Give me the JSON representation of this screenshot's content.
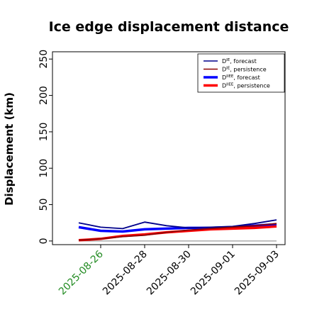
{
  "chart_data": {
    "type": "line",
    "title": "Ice edge displacement distance",
    "xlabel": "",
    "ylabel": "Displacement (km)",
    "x": [
      "2025-08-25",
      "2025-08-26",
      "2025-08-27",
      "2025-08-28",
      "2025-08-29",
      "2025-08-30",
      "2025-08-31",
      "2025-09-01",
      "2025-09-02",
      "2025-09-03"
    ],
    "xticks": [
      "2025-08-26",
      "2025-08-28",
      "2025-08-30",
      "2025-09-01",
      "2025-09-03"
    ],
    "xtick_highlight": "2025-08-26",
    "xlim": [
      "2025-08-24",
      "2025-09-03"
    ],
    "ylim": [
      -5,
      260
    ],
    "yticks": [
      0,
      50,
      100,
      150,
      200,
      250
    ],
    "grid": false,
    "legend_position": "top-right",
    "series": [
      {
        "name": "D^IE, forecast",
        "color": "#00008b",
        "width": "thin",
        "values": [
          25,
          19,
          17,
          26,
          21,
          18,
          19,
          20,
          24,
          29
        ]
      },
      {
        "name": "D^IE, persistence",
        "color": "#8b0000",
        "width": "thin",
        "values": [
          1,
          3,
          6,
          8,
          12,
          15,
          17,
          19,
          21,
          24
        ]
      },
      {
        "name": "D^IIEE, forecast",
        "color": "#0000ff",
        "width": "thick",
        "values": [
          19,
          14,
          13,
          16,
          17,
          18,
          18,
          19,
          21,
          23
        ]
      },
      {
        "name": "D^IIEE, persistence",
        "color": "#ff0000",
        "width": "thick",
        "values": [
          1,
          3,
          7,
          9,
          12,
          14,
          16,
          17,
          18,
          20
        ]
      }
    ],
    "reference_line": {
      "value": 0,
      "color": "#808080"
    },
    "legend_labels": [
      {
        "base": "D",
        "sup": "IE",
        "rest": ", forecast"
      },
      {
        "base": "D",
        "sup": "IE",
        "rest": ", persistence"
      },
      {
        "base": "D",
        "sup": "IIEE",
        "rest": ", forecast"
      },
      {
        "base": "D",
        "sup": "IIEE",
        "rest": ", persistence"
      }
    ]
  }
}
